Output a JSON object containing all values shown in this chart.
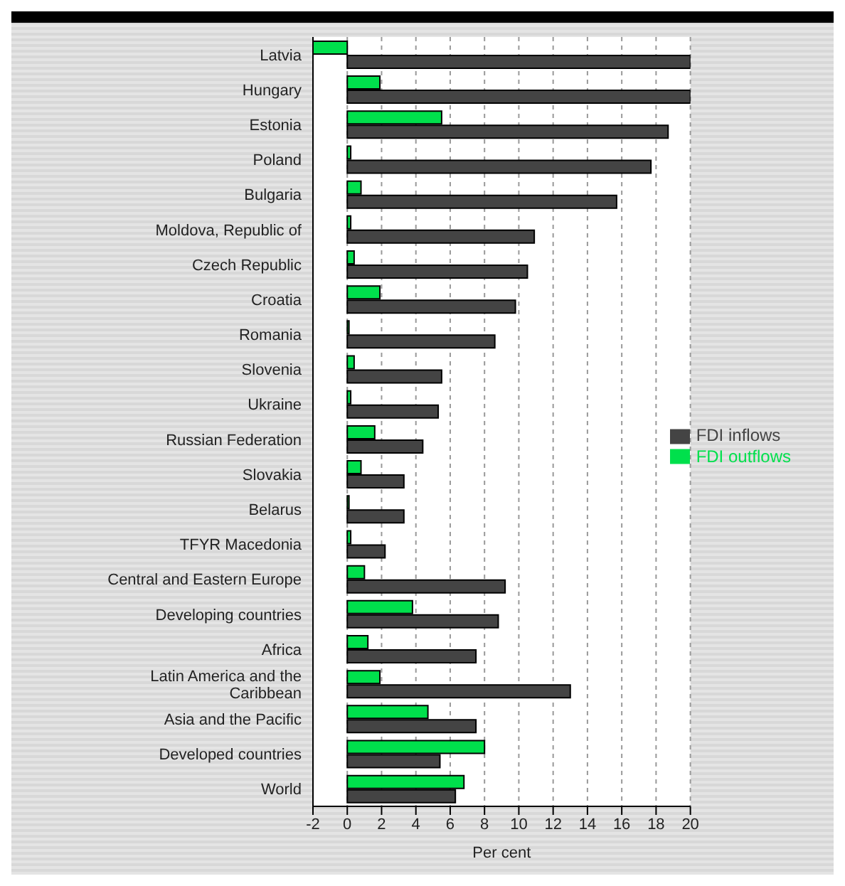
{
  "chart_data": {
    "type": "bar",
    "orientation": "horizontal",
    "xlabel": "Per cent",
    "categories": [
      "Latvia",
      "Hungary",
      "Estonia",
      "Poland",
      "Bulgaria",
      "Moldova, Republic of",
      "Czech Republic",
      "Croatia",
      "Romania",
      "Slovenia",
      "Ukraine",
      "Russian Federation",
      "Slovakia",
      "Belarus",
      "TFYR Macedonia",
      "Central and Eastern Europe",
      "Developing countries",
      "Africa",
      "Latin America and the Caribbean",
      "Asia and the Pacific",
      "Developed countries",
      "World"
    ],
    "series": [
      {
        "name": "FDI outflows",
        "color": "#00e04c",
        "values": [
          -2,
          1.9,
          5.5,
          0.2,
          0.8,
          0.2,
          0.4,
          1.9,
          0.1,
          0.4,
          0.2,
          1.6,
          0.8,
          0.1,
          0.2,
          1.0,
          3.8,
          1.2,
          1.9,
          4.7,
          8.0,
          6.8
        ]
      },
      {
        "name": "FDI inflows",
        "color": "#444444",
        "values": [
          20,
          20,
          18.7,
          17.7,
          15.7,
          10.9,
          10.5,
          9.8,
          8.6,
          5.5,
          5.3,
          4.4,
          3.3,
          3.3,
          2.2,
          9.2,
          8.8,
          7.5,
          13.0,
          7.5,
          5.4,
          6.3
        ]
      }
    ],
    "xlim": [
      -2,
      20
    ],
    "xticks": [
      -2,
      0,
      2,
      4,
      6,
      8,
      10,
      12,
      14,
      16,
      18,
      20
    ],
    "grid": "x",
    "legend": "right"
  }
}
